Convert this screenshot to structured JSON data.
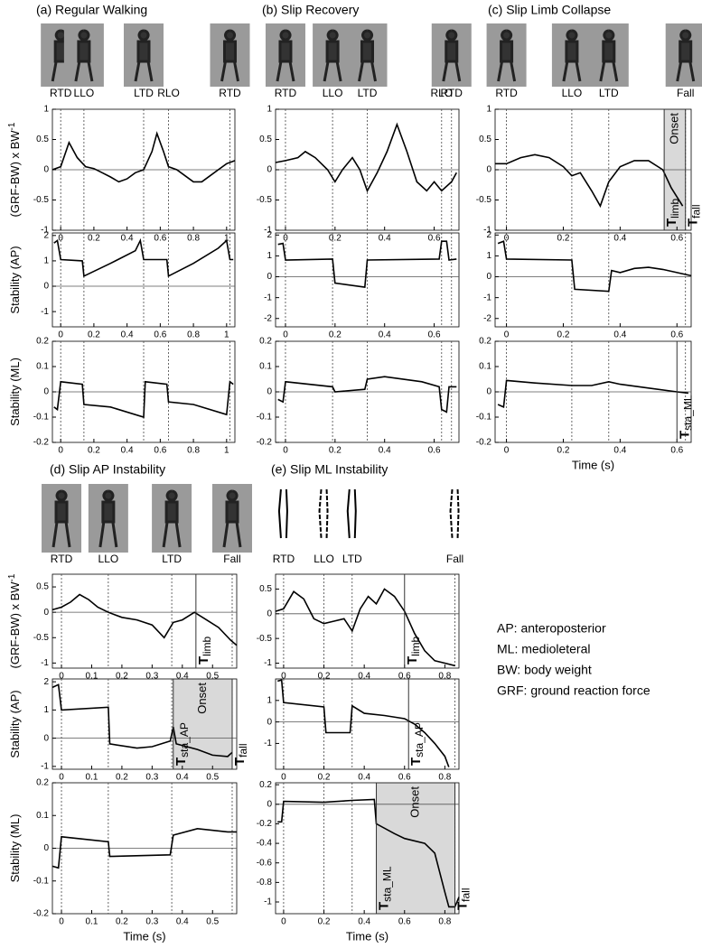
{
  "panels": [
    {
      "title": "(a) Regular Walking",
      "phases": [
        "RTD",
        "LLO",
        "LTD",
        "RLO",
        "RTD"
      ]
    },
    {
      "title": "(b) Slip Recovery",
      "phases": [
        "RTD",
        "LLO",
        "LTD",
        "RLO",
        "RTD"
      ]
    },
    {
      "title": "(c) Slip Limb Collapse",
      "phases": [
        "RTD",
        "LLO",
        "LTD",
        "Fall"
      ]
    },
    {
      "title": "(d) Slip AP Instability",
      "phases": [
        "RTD",
        "LLO",
        "LTD",
        "Fall"
      ]
    },
    {
      "title": "(e) Slip ML Instability",
      "phases": [
        "RTD",
        "LLO",
        "LTD",
        "Fall"
      ]
    }
  ],
  "notes": [
    "AP: anteroposterior",
    "ML: medioleteral",
    "BW: body weight",
    "GRF: ground reaction force"
  ],
  "chart_data": [
    {
      "type": "line",
      "ylabel": "(GRF-BW) x BW",
      "ylabel_sup": "-1",
      "xlim": [
        -0.05,
        1.05
      ],
      "xticks": [
        0,
        0.2,
        0.4,
        0.6,
        0.8,
        1
      ],
      "ylim": [
        -1,
        1
      ],
      "yticks": [
        -1,
        -0.5,
        0,
        0.5,
        1
      ],
      "events": [
        0,
        0.14,
        0.5,
        0.65,
        1.02
      ],
      "color": "#000000",
      "x": [
        -0.05,
        0,
        0.05,
        0.1,
        0.15,
        0.2,
        0.25,
        0.3,
        0.35,
        0.4,
        0.45,
        0.5,
        0.55,
        0.58,
        0.62,
        0.65,
        0.7,
        0.75,
        0.8,
        0.85,
        0.9,
        0.95,
        1.0,
        1.05
      ],
      "values": [
        0,
        0.05,
        0.45,
        0.2,
        0.05,
        0.02,
        -0.05,
        -0.12,
        -0.2,
        -0.15,
        -0.05,
        0,
        0.3,
        0.6,
        0.3,
        0.05,
        0,
        -0.1,
        -0.2,
        -0.2,
        -0.1,
        0,
        0.1,
        0.15
      ]
    },
    {
      "type": "line",
      "ylabel": "Stability (AP)",
      "xlim": [
        -0.05,
        1.05
      ],
      "xticks": [
        0,
        0.2,
        0.4,
        0.6,
        0.8,
        1
      ],
      "ylim": [
        -1.6,
        2.1
      ],
      "yticks": [
        -1,
        0,
        1,
        2
      ],
      "events": [
        0,
        0.14,
        0.5,
        0.65,
        1.02
      ],
      "color": "#000000",
      "x": [
        -0.04,
        -0.02,
        0,
        0.13,
        0.14,
        0.3,
        0.45,
        0.48,
        0.5,
        0.64,
        0.65,
        0.8,
        0.95,
        1.0,
        1.02,
        1.04
      ],
      "values": [
        1.7,
        1.8,
        1.05,
        1.0,
        0.4,
        0.9,
        1.4,
        1.8,
        1.05,
        1.05,
        0.4,
        0.9,
        1.5,
        1.8,
        1.05,
        1.05
      ]
    },
    {
      "type": "line",
      "ylabel": "Stability (ML)",
      "xlim": [
        -0.05,
        1.05
      ],
      "xticks": [
        0,
        0.2,
        0.4,
        0.6,
        0.8,
        1
      ],
      "ylim": [
        -0.2,
        0.2
      ],
      "yticks": [
        -0.2,
        -0.1,
        0,
        0.1,
        0.2
      ],
      "events": [
        0,
        0.14,
        0.5,
        0.65,
        1.02
      ],
      "color": "#000000",
      "x": [
        -0.04,
        -0.02,
        0,
        0.13,
        0.14,
        0.3,
        0.5,
        0.51,
        0.64,
        0.65,
        0.8,
        1.0,
        1.02,
        1.04
      ],
      "values": [
        -0.06,
        -0.07,
        0.04,
        0.03,
        -0.05,
        -0.06,
        -0.1,
        0.04,
        0.03,
        -0.04,
        -0.05,
        -0.09,
        0.04,
        0.03
      ]
    },
    {
      "type": "line",
      "xlim": [
        -0.04,
        0.7
      ],
      "xticks": [
        0,
        0.2,
        0.4,
        0.6
      ],
      "ylim": [
        -1,
        1
      ],
      "yticks": [
        -1,
        -0.5,
        0,
        0.5,
        1
      ],
      "events": [
        0,
        0.19,
        0.33,
        0.63,
        0.67
      ],
      "color": "#000000",
      "x": [
        -0.04,
        0,
        0.05,
        0.08,
        0.12,
        0.17,
        0.2,
        0.23,
        0.27,
        0.3,
        0.33,
        0.37,
        0.41,
        0.45,
        0.49,
        0.53,
        0.57,
        0.6,
        0.63,
        0.67,
        0.69
      ],
      "values": [
        0.12,
        0.15,
        0.2,
        0.3,
        0.2,
        0,
        -0.2,
        0,
        0.2,
        0,
        -0.35,
        -0.05,
        0.3,
        0.75,
        0.3,
        -0.2,
        -0.35,
        -0.2,
        -0.35,
        -0.2,
        -0.05
      ]
    },
    {
      "type": "line",
      "xlim": [
        -0.04,
        0.7
      ],
      "xticks": [
        0,
        0.2,
        0.4,
        0.6
      ],
      "ylim": [
        -2.4,
        2.1
      ],
      "yticks": [
        -2,
        -1,
        0,
        1,
        2
      ],
      "events": [
        0,
        0.19,
        0.33,
        0.63,
        0.67
      ],
      "color": "#000000",
      "x": [
        -0.03,
        -0.01,
        0,
        0.19,
        0.2,
        0.32,
        0.33,
        0.62,
        0.63,
        0.65,
        0.66,
        0.69
      ],
      "values": [
        1.55,
        1.6,
        0.8,
        0.85,
        -0.3,
        -0.5,
        0.8,
        0.85,
        1.7,
        1.7,
        0.8,
        0.85
      ]
    },
    {
      "type": "line",
      "xlim": [
        -0.04,
        0.7
      ],
      "xticks": [
        0,
        0.2,
        0.4,
        0.6
      ],
      "ylim": [
        -0.2,
        0.2
      ],
      "yticks": [
        -0.2,
        -0.1,
        0,
        0.1,
        0.2
      ],
      "events": [
        0,
        0.19,
        0.33,
        0.63,
        0.67
      ],
      "color": "#000000",
      "x": [
        -0.03,
        -0.01,
        0,
        0.19,
        0.2,
        0.32,
        0.33,
        0.4,
        0.55,
        0.62,
        0.63,
        0.65,
        0.66,
        0.69
      ],
      "values": [
        -0.03,
        -0.04,
        0.04,
        0.02,
        0,
        0.01,
        0.05,
        0.06,
        0.04,
        0.02,
        -0.07,
        -0.08,
        0.02,
        0.02
      ]
    },
    {
      "type": "line",
      "xlim": [
        -0.04,
        0.65
      ],
      "xticks": [
        0,
        0.2,
        0.4,
        0.6
      ],
      "ylim": [
        -1,
        1
      ],
      "yticks": [
        -1,
        -0.5,
        0,
        0.5,
        1
      ],
      "events": [
        0,
        0.23,
        0.36,
        0.63
      ],
      "color": "#000000",
      "shade": [
        0.555,
        0.63
      ],
      "shade_label": "Onset",
      "markers": [
        {
          "x": 0.555,
          "label": "T",
          "sub": "limb"
        },
        {
          "x": 0.63,
          "label": "T",
          "sub": "fall"
        }
      ],
      "x": [
        -0.04,
        0,
        0.05,
        0.1,
        0.15,
        0.2,
        0.23,
        0.26,
        0.3,
        0.33,
        0.36,
        0.4,
        0.45,
        0.5,
        0.55,
        0.58,
        0.62
      ],
      "values": [
        0.1,
        0.1,
        0.2,
        0.25,
        0.2,
        0.05,
        -0.1,
        -0.05,
        -0.35,
        -0.6,
        -0.2,
        0.05,
        0.15,
        0.15,
        0,
        -0.3,
        -0.6
      ]
    },
    {
      "type": "line",
      "xlim": [
        -0.04,
        0.65
      ],
      "xticks": [
        0,
        0.2,
        0.4,
        0.6
      ],
      "ylim": [
        -2.4,
        2.1
      ],
      "yticks": [
        -2,
        -1,
        0,
        1,
        2
      ],
      "events": [
        0,
        0.23,
        0.36,
        0.63
      ],
      "color": "#000000",
      "x": [
        -0.03,
        -0.01,
        0,
        0.23,
        0.24,
        0.36,
        0.37,
        0.4,
        0.45,
        0.5,
        0.55,
        0.6,
        0.65
      ],
      "values": [
        1.6,
        1.7,
        0.85,
        0.8,
        -0.6,
        -0.7,
        0.3,
        0.2,
        0.4,
        0.45,
        0.35,
        0.2,
        0.05
      ]
    },
    {
      "type": "line",
      "xlabel": "Time (s)",
      "xlim": [
        -0.04,
        0.65
      ],
      "xticks": [
        0,
        0.2,
        0.4,
        0.6
      ],
      "ylim": [
        -0.2,
        0.2
      ],
      "yticks": [
        -0.2,
        -0.1,
        0,
        0.1,
        0.2
      ],
      "events": [
        0,
        0.23,
        0.36,
        0.63
      ],
      "color": "#000000",
      "markers": [
        {
          "x": 0.6,
          "label": "T",
          "sub": "sta_ML"
        }
      ],
      "x": [
        -0.03,
        -0.01,
        0,
        0.1,
        0.23,
        0.3,
        0.36,
        0.4,
        0.5,
        0.6,
        0.64
      ],
      "values": [
        -0.05,
        -0.06,
        0.045,
        0.035,
        0.025,
        0.025,
        0.04,
        0.03,
        0.015,
        0,
        -0.005
      ]
    },
    {
      "type": "line",
      "ylabel": "(GRF-BW) x BW",
      "ylabel_sup": "-1",
      "xlim": [
        -0.03,
        0.58
      ],
      "xticks": [
        0,
        0.1,
        0.2,
        0.3,
        0.4,
        0.5
      ],
      "ylim": [
        -1.1,
        0.75
      ],
      "yticks": [
        -1,
        -0.5,
        0,
        0.5
      ],
      "events": [
        0,
        0.155,
        0.365,
        0.565
      ],
      "color": "#000000",
      "markers": [
        {
          "x": 0.445,
          "label": "T",
          "sub": "limb"
        }
      ],
      "x": [
        -0.03,
        0,
        0.03,
        0.06,
        0.09,
        0.12,
        0.155,
        0.2,
        0.25,
        0.3,
        0.34,
        0.37,
        0.4,
        0.44,
        0.48,
        0.52,
        0.56,
        0.58
      ],
      "values": [
        0.05,
        0.1,
        0.2,
        0.35,
        0.25,
        0.1,
        0,
        -0.1,
        -0.15,
        -0.25,
        -0.5,
        -0.2,
        -0.15,
        0,
        -0.15,
        -0.3,
        -0.55,
        -0.65
      ]
    },
    {
      "type": "line",
      "ylabel": "Stability (AP)",
      "xlim": [
        -0.03,
        0.58
      ],
      "xticks": [
        0,
        0.1,
        0.2,
        0.3,
        0.4,
        0.5
      ],
      "ylim": [
        -1.1,
        2.1
      ],
      "yticks": [
        -1,
        0,
        1,
        2
      ],
      "events": [
        0,
        0.155,
        0.365,
        0.565
      ],
      "color": "#000000",
      "shade": [
        0.37,
        0.565
      ],
      "shade_label": "Onset",
      "markers": [
        {
          "x": 0.37,
          "label": "T",
          "sub": "sta_AP"
        },
        {
          "x": 0.565,
          "label": "T",
          "sub": "fall"
        }
      ],
      "x": [
        -0.03,
        -0.01,
        0,
        0.155,
        0.16,
        0.25,
        0.3,
        0.36,
        0.37,
        0.38,
        0.45,
        0.5,
        0.55,
        0.565
      ],
      "values": [
        1.8,
        1.9,
        1.0,
        1.1,
        -0.2,
        -0.35,
        -0.3,
        -0.1,
        0.4,
        -0.2,
        -0.4,
        -0.6,
        -0.65,
        -0.5
      ]
    },
    {
      "type": "line",
      "ylabel": "Stability (ML)",
      "xlabel": "Time (s)",
      "xlim": [
        -0.03,
        0.58
      ],
      "xticks": [
        0,
        0.1,
        0.2,
        0.3,
        0.4,
        0.5
      ],
      "ylim": [
        -0.2,
        0.2
      ],
      "yticks": [
        -0.2,
        -0.1,
        0,
        0.1,
        0.2
      ],
      "events": [
        0,
        0.155,
        0.365,
        0.565
      ],
      "color": "#000000",
      "x": [
        -0.03,
        -0.01,
        0,
        0.155,
        0.16,
        0.36,
        0.37,
        0.45,
        0.55,
        0.58
      ],
      "values": [
        -0.055,
        -0.06,
        0.035,
        0.02,
        -0.025,
        -0.02,
        0.04,
        0.06,
        0.05,
        0.05
      ]
    },
    {
      "type": "line",
      "xlim": [
        -0.04,
        0.87
      ],
      "xticks": [
        0,
        0.2,
        0.4,
        0.6,
        0.8
      ],
      "ylim": [
        -1.1,
        0.8
      ],
      "yticks": [
        -1,
        -0.5,
        0,
        0.5
      ],
      "events": [
        0,
        0.2,
        0.34,
        0.85
      ],
      "color": "#000000",
      "markers": [
        {
          "x": 0.6,
          "label": "T",
          "sub": "limb"
        }
      ],
      "x": [
        -0.04,
        0,
        0.05,
        0.1,
        0.15,
        0.2,
        0.25,
        0.3,
        0.34,
        0.38,
        0.42,
        0.46,
        0.5,
        0.55,
        0.6,
        0.65,
        0.7,
        0.75,
        0.8,
        0.85
      ],
      "values": [
        0.05,
        0.1,
        0.45,
        0.3,
        -0.1,
        -0.2,
        -0.15,
        -0.1,
        -0.35,
        0.1,
        0.35,
        0.2,
        0.5,
        0.35,
        0.05,
        -0.4,
        -0.75,
        -0.95,
        -1.0,
        -1.05
      ]
    },
    {
      "type": "line",
      "xlim": [
        -0.04,
        0.87
      ],
      "xticks": [
        0,
        0.2,
        0.4,
        0.6,
        0.8
      ],
      "ylim": [
        -2.2,
        2
      ],
      "yticks": [
        -1,
        0,
        1
      ],
      "events": [
        0,
        0.2,
        0.34,
        0.85
      ],
      "color": "#000000",
      "markers": [
        {
          "x": 0.62,
          "label": "T",
          "sub": "sta_AP"
        }
      ],
      "x": [
        -0.03,
        -0.01,
        0,
        0.2,
        0.21,
        0.33,
        0.34,
        0.4,
        0.5,
        0.6,
        0.65,
        0.7,
        0.75,
        0.8,
        0.82
      ],
      "values": [
        1.9,
        1.95,
        0.9,
        0.7,
        -0.5,
        -0.5,
        0.75,
        0.4,
        0.3,
        0.15,
        -0.1,
        -0.5,
        -1.0,
        -1.6,
        -2.1
      ]
    },
    {
      "type": "line",
      "xlabel": "Time (s)",
      "xlim": [
        -0.04,
        0.87
      ],
      "xticks": [
        0,
        0.2,
        0.4,
        0.6,
        0.8
      ],
      "ylim": [
        -1.12,
        0.22
      ],
      "yticks": [
        -1,
        -0.8,
        -0.6,
        -0.4,
        -0.2,
        0,
        0.2
      ],
      "events": [
        0,
        0.2,
        0.34,
        0.85
      ],
      "color": "#000000",
      "shade": [
        0.46,
        0.85
      ],
      "shade_label": "Onset",
      "markers": [
        {
          "x": 0.46,
          "label": "T",
          "sub": "sta_ML"
        },
        {
          "x": 0.85,
          "label": "T",
          "sub": "fall"
        }
      ],
      "x": [
        -0.03,
        -0.01,
        0,
        0.2,
        0.34,
        0.45,
        0.46,
        0.55,
        0.6,
        0.7,
        0.75,
        0.8,
        0.82,
        0.85,
        0.87
      ],
      "values": [
        -0.18,
        -0.18,
        0.03,
        0.02,
        0.04,
        0.05,
        -0.2,
        -0.3,
        -0.35,
        -0.4,
        -0.5,
        -0.9,
        -1.05,
        -1.05,
        -0.95
      ]
    }
  ]
}
